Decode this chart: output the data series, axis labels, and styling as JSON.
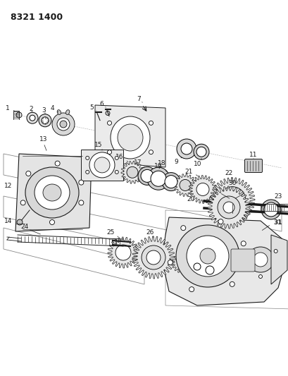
{
  "title": "8321 1400",
  "bg_color": "#ffffff",
  "line_color": "#1a1a1a",
  "fig_width": 4.1,
  "fig_height": 5.33,
  "dpi": 100,
  "title_fontsize": 9,
  "label_fontsize": 6.5
}
